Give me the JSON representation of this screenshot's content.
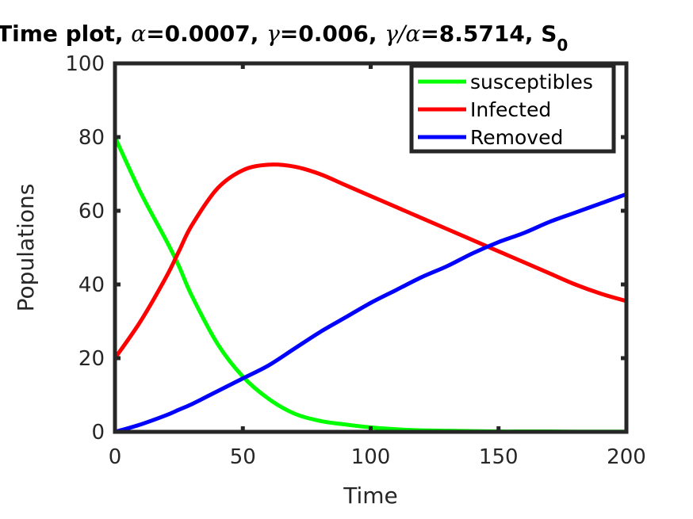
{
  "chart_data": {
    "type": "line",
    "title": {
      "prefix": "Time plot, ",
      "alpha_symbol": "α",
      "alpha_value": "=0.0007, ",
      "gamma_symbol": "γ",
      "gamma_value": "=0.006, ",
      "ratio_symbol_gamma": "γ",
      "ratio_slash": "/",
      "ratio_symbol_alpha": "α",
      "ratio_value": "=8.5714, ",
      "s_prefix": "S",
      "s_subscript": "0"
    },
    "xlabel": "Time",
    "ylabel": "Populations",
    "xlim": [
      0,
      200
    ],
    "ylim": [
      0,
      100
    ],
    "xticks": [
      0,
      50,
      100,
      150,
      200
    ],
    "yticks": [
      0,
      20,
      40,
      60,
      80,
      100
    ],
    "legend_position": "top-right",
    "grid": false,
    "x": [
      0,
      10,
      20,
      25,
      30,
      40,
      50,
      60,
      70,
      80,
      90,
      100,
      110,
      120,
      130,
      140,
      150,
      160,
      170,
      180,
      190,
      200
    ],
    "series": [
      {
        "name": "susceptibles",
        "color": "#00ff00",
        "values": [
          80,
          65,
          52,
          45,
          37,
          24,
          15,
          9,
          5,
          3,
          2,
          1.2,
          0.7,
          0.4,
          0.3,
          0.2,
          0.1,
          0.1,
          0.1,
          0.05,
          0.05,
          0.05
        ]
      },
      {
        "name": "Infected",
        "color": "#ff0000",
        "values": [
          20,
          30,
          42,
          49,
          56,
          66,
          71,
          72.5,
          72,
          70,
          67,
          64,
          61,
          58,
          55,
          52,
          49,
          46,
          43,
          40,
          37.5,
          35.5
        ]
      },
      {
        "name": "Removed",
        "color": "#0000ff",
        "values": [
          0,
          2,
          4.5,
          6,
          7.5,
          11,
          14.5,
          18,
          22.5,
          27,
          31,
          35,
          38.5,
          42,
          45,
          48.5,
          51.5,
          54,
          57,
          59.5,
          62,
          64.5
        ]
      }
    ]
  }
}
